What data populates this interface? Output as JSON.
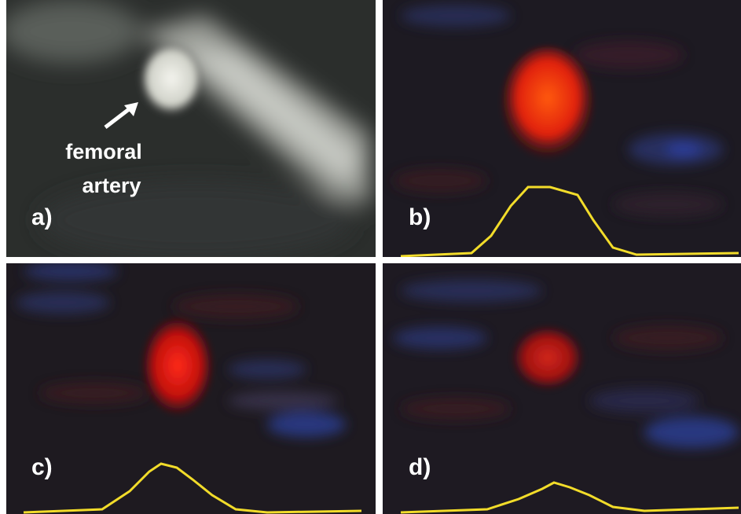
{
  "panels": [
    {
      "label": "a)",
      "annotation": [
        "femoral",
        "artery"
      ]
    },
    {
      "label": "b)"
    },
    {
      "label": "c)"
    },
    {
      "label": "d)"
    }
  ]
}
